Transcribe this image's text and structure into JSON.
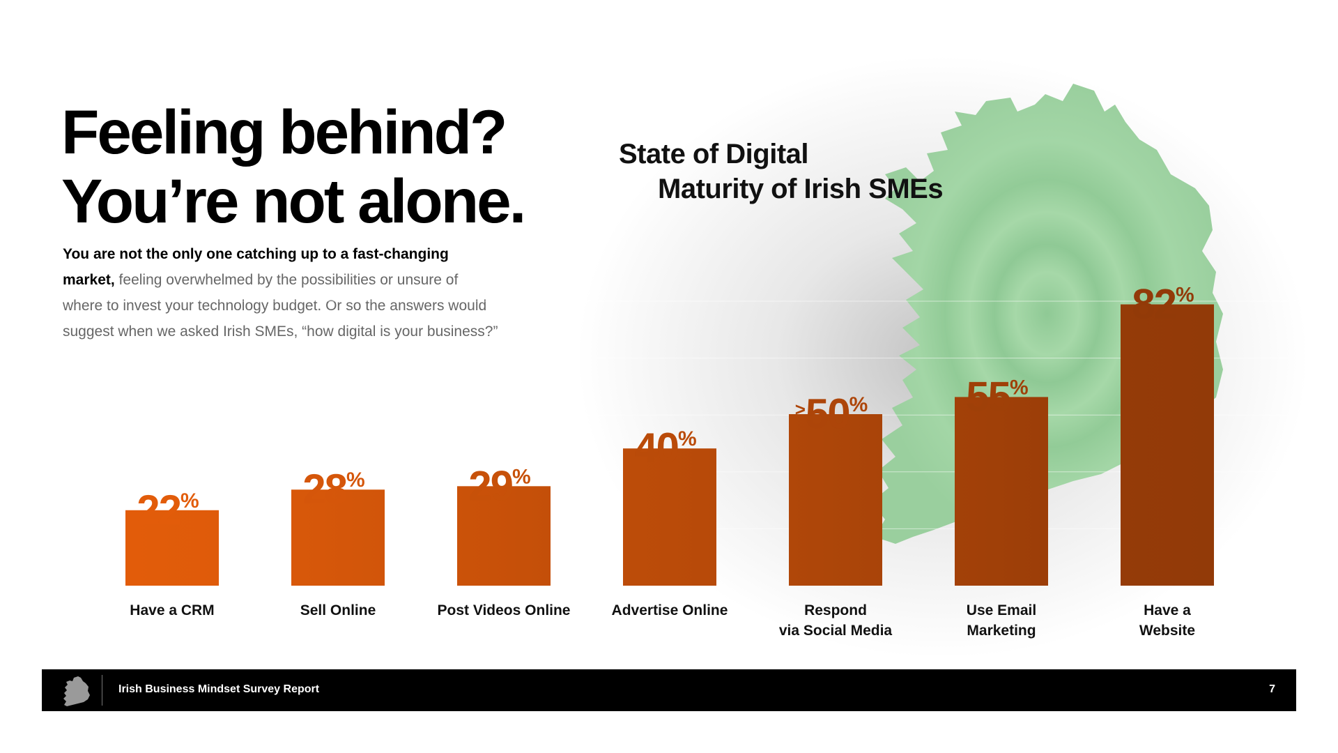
{
  "headline": {
    "line1": "Feeling behind?",
    "line2": "You’re not alone."
  },
  "intro": {
    "lead": "You are not the only one catching up to a fast-changing market,",
    "rest": " feeling overwhelmed by the possibilities or unsure of where to invest your technology budget. Or so the answers would suggest when we asked Irish SMEs, “how digital is your business?”"
  },
  "colors": {
    "bar_light": "#E25C0A",
    "bar_dark": "#923A08",
    "map_green": "#9FD3A2",
    "footer_bg": "#000000"
  },
  "chart_data": {
    "type": "bar",
    "title_line1": "State of Digital",
    "title_line2": "Maturity of Irish SMEs",
    "categories": [
      [
        "Have a CRM"
      ],
      [
        "Sell Online"
      ],
      [
        "Post Videos Online"
      ],
      [
        "Advertise Online"
      ],
      [
        "Respond",
        "via Social Media"
      ],
      [
        "Use Email",
        "Marketing"
      ],
      [
        "Have a",
        "Website"
      ]
    ],
    "values": [
      22,
      28,
      29,
      40,
      50,
      55,
      82
    ],
    "value_prefixes": [
      "",
      "",
      "",
      "",
      ">",
      "",
      ""
    ],
    "value_suffix": "%",
    "ylim": [
      0,
      100
    ],
    "grid": true,
    "legend": "none"
  },
  "footer": {
    "report_title": "Irish Business Mindset Survey Report",
    "page_number": "7",
    "logo_icon": "ireland-map-icon"
  }
}
